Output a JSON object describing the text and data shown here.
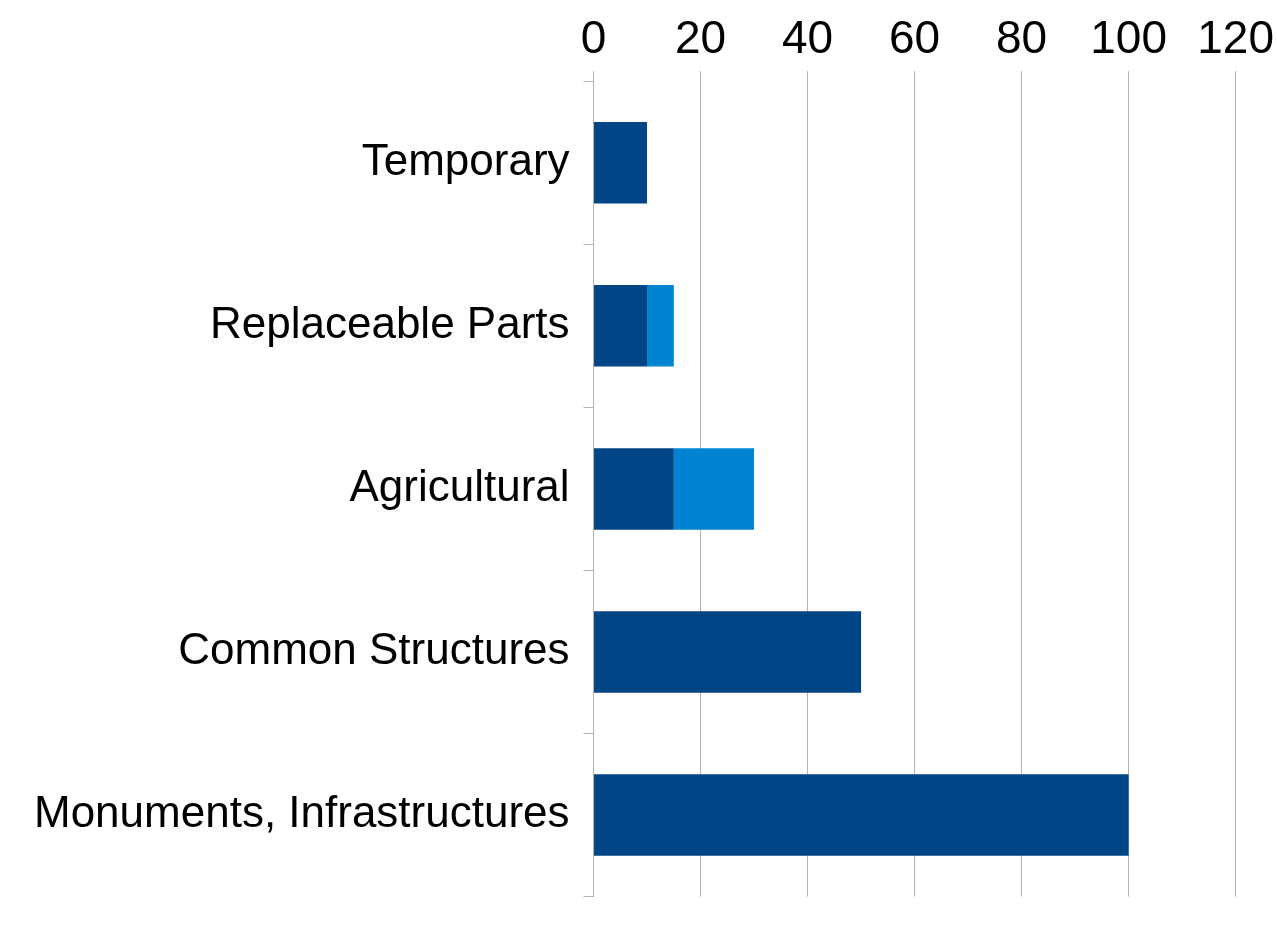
{
  "chart_data": {
    "type": "bar",
    "orientation": "horizontal",
    "stacked": true,
    "categories": [
      "Temporary",
      "Replaceable Parts",
      "Agricultural",
      "Common Structures",
      "Monuments, Infrastructures"
    ],
    "series": [
      {
        "color": "#004586",
        "values": [
          10,
          10,
          15,
          50,
          100
        ]
      },
      {
        "color": "#0084d1",
        "values": [
          null,
          5,
          15,
          null,
          null
        ]
      }
    ],
    "xlim": [
      0,
      120
    ],
    "xticks": [
      0,
      20,
      40,
      60,
      80,
      100,
      120
    ],
    "grid": "x",
    "legend": false
  }
}
